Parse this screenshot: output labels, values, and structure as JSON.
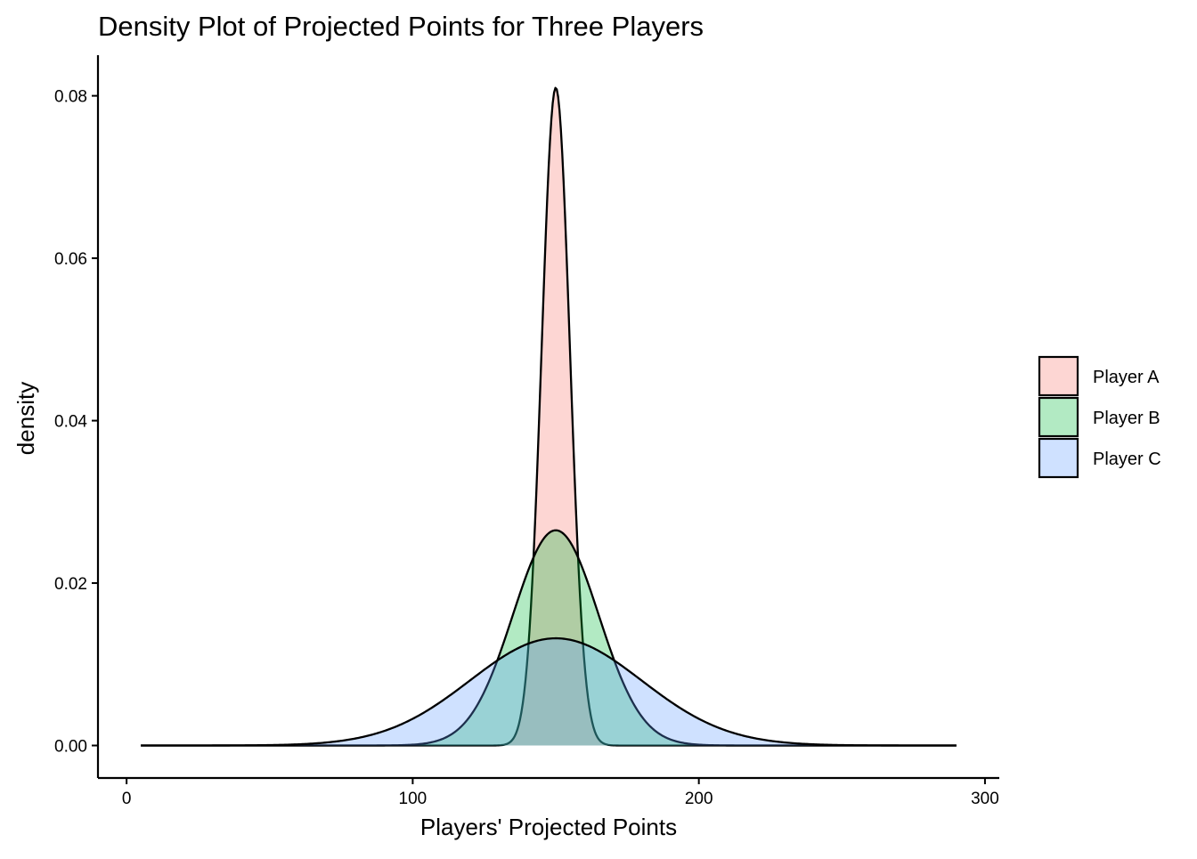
{
  "chart_data": {
    "type": "area",
    "title": "Density Plot of Projected Points for Three Players",
    "xlabel": "Players' Projected Points",
    "ylabel": "density",
    "xlim": [
      -10,
      305
    ],
    "ylim": [
      -0.004,
      0.085
    ],
    "x_ticks": [
      0,
      100,
      200,
      300
    ],
    "x_tick_labels": [
      "0",
      "100",
      "200",
      "300"
    ],
    "y_ticks": [
      0,
      0.02,
      0.04,
      0.06,
      0.08
    ],
    "y_tick_labels": [
      "0.00",
      "0.02",
      "0.04",
      "0.06",
      "0.08"
    ],
    "grid": false,
    "legend_position": "right",
    "x_range": [
      5,
      290
    ],
    "series": [
      {
        "name": "Player A",
        "color": "#F8766D",
        "fill_opacity": 0.3,
        "mean": 150,
        "sd": 4.92,
        "peak_density": 0.081,
        "x_range": [
          140,
          160
        ]
      },
      {
        "name": "Player B",
        "color": "#00BA38",
        "fill_opacity": 0.3,
        "mean": 150,
        "sd": 15,
        "peak_density": 0.0265,
        "x_range": [
          105,
          195
        ]
      },
      {
        "name": "Player C",
        "color": "#619CFF",
        "fill_opacity": 0.3,
        "mean": 150,
        "sd": 30,
        "peak_density": 0.0132,
        "x_range": [
          5,
          290
        ]
      }
    ]
  }
}
